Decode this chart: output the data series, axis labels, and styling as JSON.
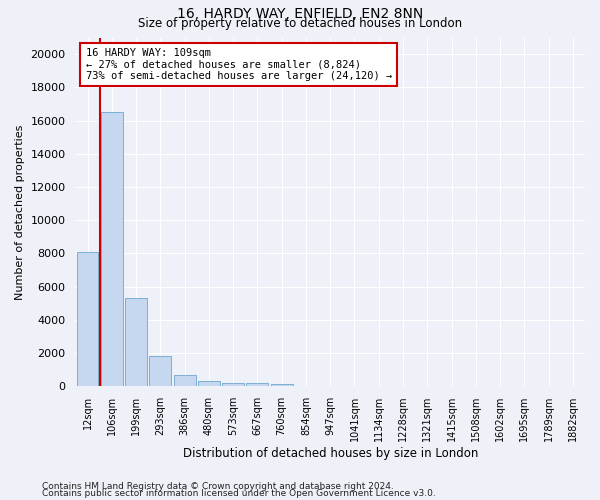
{
  "title1": "16, HARDY WAY, ENFIELD, EN2 8NN",
  "title2": "Size of property relative to detached houses in London",
  "xlabel": "Distribution of detached houses by size in London",
  "ylabel": "Number of detached properties",
  "bar_color": "#c5d8ef",
  "bar_edge_color": "#7aafd4",
  "background_color": "#eef2f8",
  "grid_color": "#ffffff",
  "categories": [
    "12sqm",
    "106sqm",
    "199sqm",
    "293sqm",
    "386sqm",
    "480sqm",
    "573sqm",
    "667sqm",
    "760sqm",
    "854sqm",
    "947sqm",
    "1041sqm",
    "1134sqm",
    "1228sqm",
    "1321sqm",
    "1415sqm",
    "1508sqm",
    "1602sqm",
    "1695sqm",
    "1789sqm",
    "1882sqm"
  ],
  "values": [
    8100,
    16500,
    5300,
    1850,
    700,
    320,
    220,
    180,
    130,
    0,
    0,
    0,
    0,
    0,
    0,
    0,
    0,
    0,
    0,
    0,
    0
  ],
  "ylim": [
    0,
    21000
  ],
  "yticks": [
    0,
    2000,
    4000,
    6000,
    8000,
    10000,
    12000,
    14000,
    16000,
    18000,
    20000
  ],
  "vline_x_index": 1,
  "vline_color": "#cc0000",
  "annotation_line1": "16 HARDY WAY: 109sqm",
  "annotation_line2": "← 27% of detached houses are smaller (8,824)",
  "annotation_line3": "73% of semi-detached houses are larger (24,120) →",
  "annotation_box_color": "#ffffff",
  "annotation_box_edge": "#cc0000",
  "footer1": "Contains HM Land Registry data © Crown copyright and database right 2024.",
  "footer2": "Contains public sector information licensed under the Open Government Licence v3.0."
}
